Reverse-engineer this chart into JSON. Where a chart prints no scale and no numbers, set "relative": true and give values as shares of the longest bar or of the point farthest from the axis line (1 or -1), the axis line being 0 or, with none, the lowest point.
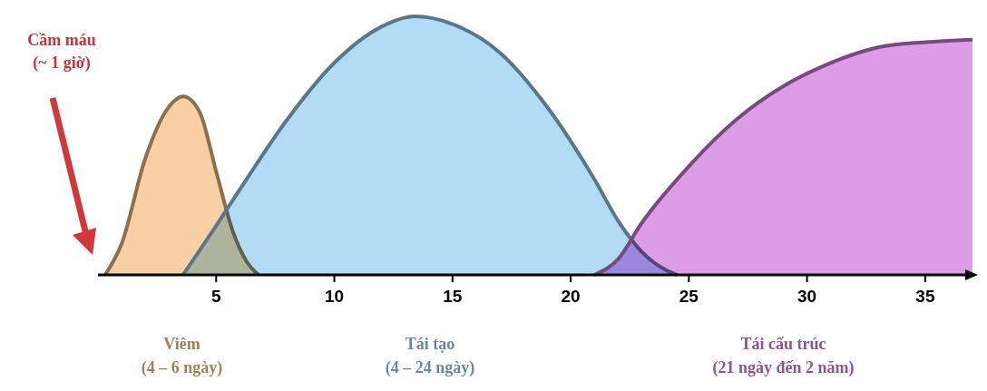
{
  "chart_data": {
    "type": "area",
    "relative": true,
    "xlim": [
      0,
      37
    ],
    "xticks": [
      5,
      10,
      15,
      20,
      25,
      30,
      35
    ],
    "series": [
      {
        "name": "Viêm\n(4 – 6 ngày)",
        "color": "#f7c48c",
        "x": [
          0.3,
          1,
          2,
          3,
          3.6,
          4.3,
          5,
          5.7,
          6.3,
          6.8
        ],
        "values": [
          0,
          0.12,
          0.45,
          0.65,
          0.69,
          0.63,
          0.4,
          0.17,
          0.05,
          0
        ]
      },
      {
        "name": "Tái tạo\n(4 – 24 ngày)",
        "color": "#9fd2f2",
        "x": [
          3.6,
          5,
          6,
          8,
          10,
          12,
          13.4,
          15,
          17,
          19,
          21,
          22,
          23,
          24,
          24.5
        ],
        "values": [
          0,
          0.19,
          0.33,
          0.6,
          0.82,
          0.96,
          1,
          0.97,
          0.86,
          0.65,
          0.37,
          0.21,
          0.09,
          0.02,
          0
        ]
      },
      {
        "name": "Tái cấu trúc\n(21 ngày đến 2 năm)",
        "color": "#d583e0",
        "x": [
          21,
          22,
          23,
          25,
          27,
          29,
          31,
          33,
          35,
          37
        ],
        "values": [
          0,
          0.06,
          0.2,
          0.42,
          0.6,
          0.73,
          0.82,
          0.88,
          0.9,
          0.91
        ]
      }
    ],
    "annotations": [
      "Cầm máu\n(~ 1 giờ)"
    ]
  }
}
